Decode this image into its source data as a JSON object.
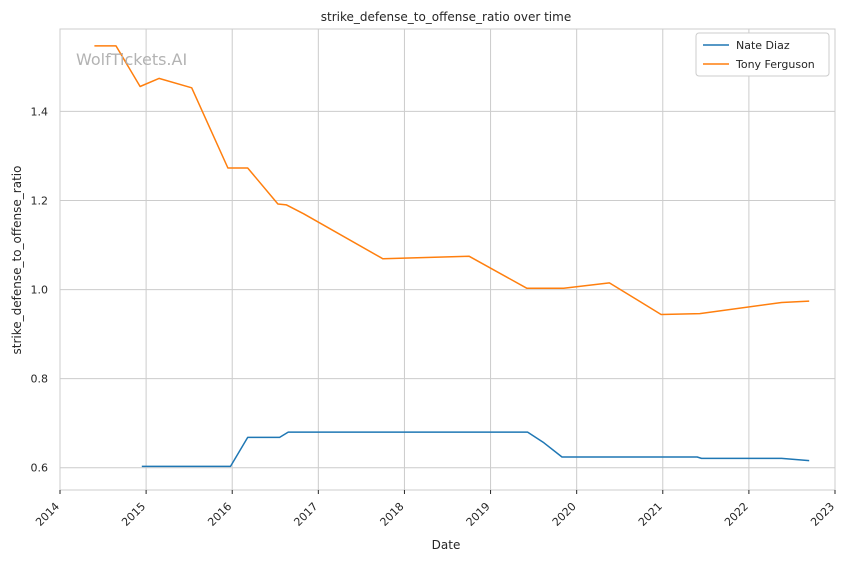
{
  "watermark": "WolfTickets.AI",
  "colors": {
    "nate": "#1f77b4",
    "tony": "#ff7f0e"
  },
  "chart_data": {
    "type": "line",
    "title": "strike_defense_to_offense_ratio over time",
    "xlabel": "Date",
    "ylabel": "strike_defense_to_offense_ratio",
    "xlim": [
      2014.0,
      2023.0
    ],
    "ylim": [
      0.55,
      1.585
    ],
    "x_ticks": [
      "2014",
      "2015",
      "2016",
      "2017",
      "2018",
      "2019",
      "2020",
      "2021",
      "2022",
      "2023"
    ],
    "y_ticks": [
      "0.6",
      "0.8",
      "1.0",
      "1.2",
      "1.4"
    ],
    "grid": true,
    "legend": "top-right",
    "series": [
      {
        "name": "Nate Diaz",
        "points": [
          [
            2014.95,
            0.603
          ],
          [
            2015.98,
            0.603
          ],
          [
            2016.18,
            0.668
          ],
          [
            2016.55,
            0.668
          ],
          [
            2016.65,
            0.68
          ],
          [
            2019.43,
            0.68
          ],
          [
            2019.62,
            0.656
          ],
          [
            2019.83,
            0.624
          ],
          [
            2021.4,
            0.624
          ],
          [
            2021.45,
            0.621
          ],
          [
            2022.38,
            0.621
          ],
          [
            2022.7,
            0.616
          ]
        ]
      },
      {
        "name": "Tony Ferguson",
        "points": [
          [
            2014.4,
            1.547
          ],
          [
            2014.65,
            1.547
          ],
          [
            2014.93,
            1.456
          ],
          [
            2015.15,
            1.474
          ],
          [
            2015.53,
            1.453
          ],
          [
            2015.95,
            1.273
          ],
          [
            2016.18,
            1.273
          ],
          [
            2016.53,
            1.192
          ],
          [
            2016.63,
            1.19
          ],
          [
            2016.83,
            1.17
          ],
          [
            2017.75,
            1.069
          ],
          [
            2018.75,
            1.075
          ],
          [
            2019.42,
            1.003
          ],
          [
            2019.85,
            1.003
          ],
          [
            2020.38,
            1.015
          ],
          [
            2020.98,
            0.944
          ],
          [
            2021.43,
            0.946
          ],
          [
            2022.38,
            0.971
          ],
          [
            2022.7,
            0.974
          ]
        ]
      }
    ]
  }
}
